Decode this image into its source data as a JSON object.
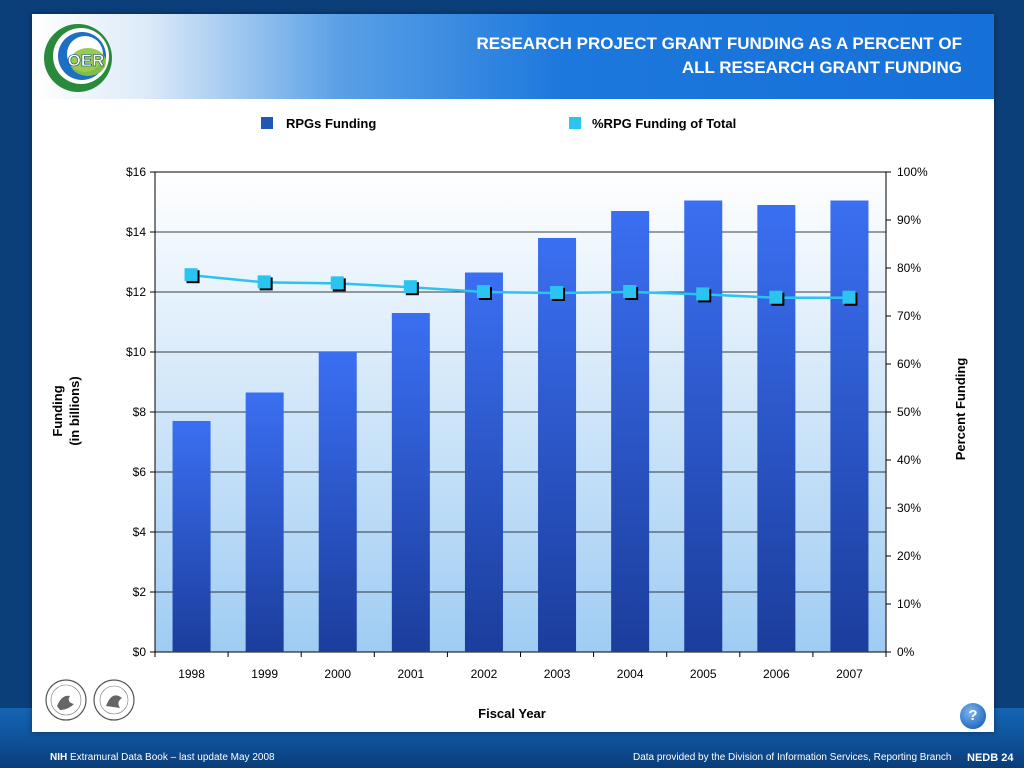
{
  "slide": {
    "title": "RESEARCH PROJECT GRANT FUNDING AS A PERCENT OF\nALL RESEARCH GRANT FUNDING",
    "logo_text": "OER"
  },
  "footer": {
    "nih": "NIH",
    "left_text": "Extramural Data Book – last update May 2008",
    "right_text": "Data provided by the Division of Information Services, Reporting Branch",
    "page_label": "NEDB 24",
    "help": "?"
  },
  "colors": {
    "bar_top": "#3b6ff2",
    "bar_bottom": "#1b3d9c",
    "line": "#2bc3f0",
    "marker": "#2bc3f0",
    "plot_bg_top": "#ffffff",
    "plot_bg_bottom": "#9fccf3"
  },
  "chart_data": {
    "type": "bar",
    "categories": [
      "1998",
      "1999",
      "2000",
      "2001",
      "2002",
      "2003",
      "2004",
      "2005",
      "2006",
      "2007"
    ],
    "series": [
      {
        "name": "RPGs Funding",
        "type": "bar",
        "axis": "left",
        "values": [
          7.7,
          8.65,
          10.0,
          11.3,
          12.65,
          13.8,
          14.7,
          15.05,
          14.9,
          15.05
        ]
      },
      {
        "name": "%RPG Funding of Total",
        "type": "line",
        "axis": "right",
        "values": [
          78.5,
          77.0,
          76.8,
          76.0,
          75.0,
          74.8,
          75.0,
          74.5,
          73.8,
          73.8
        ]
      }
    ],
    "xlabel": "Fiscal Year",
    "ylabel": "Funding\n(in billions)",
    "y2label": "Percent Funding",
    "ylim": [
      0,
      16
    ],
    "y2lim": [
      0,
      100
    ],
    "yticks": [
      "$0",
      "$2",
      "$4",
      "$6",
      "$8",
      "$10",
      "$12",
      "$14",
      "$16"
    ],
    "y2ticks": [
      "0%",
      "10%",
      "20%",
      "30%",
      "40%",
      "50%",
      "60%",
      "70%",
      "80%",
      "90%",
      "100%"
    ],
    "legend_position": "top",
    "grid": true
  }
}
